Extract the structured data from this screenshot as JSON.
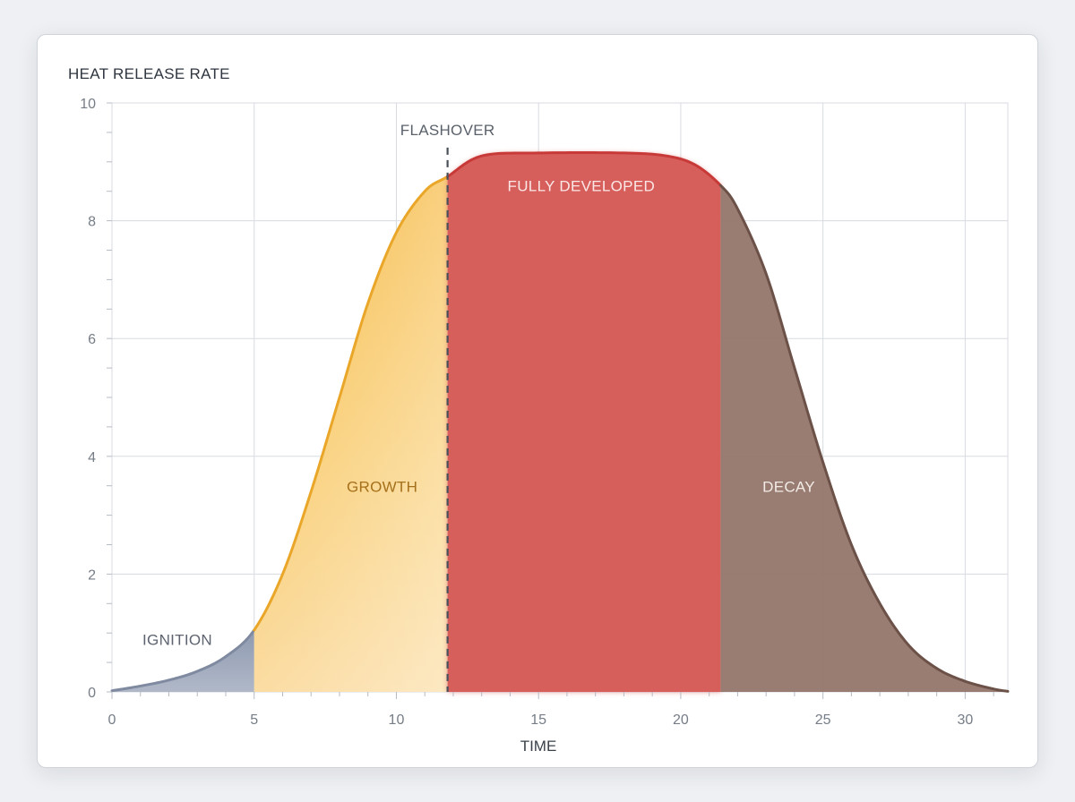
{
  "chart_data": {
    "type": "area",
    "title": "HEAT RELEASE RATE",
    "xlabel": "TIME",
    "ylabel": "",
    "xlim": [
      0,
      31.5
    ],
    "ylim": [
      0,
      10
    ],
    "x_ticks": [
      0,
      5,
      10,
      15,
      20,
      25,
      30
    ],
    "y_ticks": [
      0,
      2,
      4,
      6,
      8,
      10
    ],
    "grid": true,
    "series": [
      {
        "values_x": [
          0,
          1,
          2,
          3,
          4,
          5,
          6,
          7,
          8,
          9,
          10,
          11,
          11.8,
          13,
          15,
          18,
          19.5,
          20.5,
          21.4,
          22,
          23,
          24,
          25,
          26,
          27,
          28,
          29,
          30,
          31,
          31.5
        ],
        "values_y": [
          0.02,
          0.1,
          0.2,
          0.35,
          0.6,
          1.05,
          2.0,
          3.4,
          5.0,
          6.6,
          7.8,
          8.5,
          8.75,
          9.1,
          9.15,
          9.15,
          9.1,
          8.95,
          8.6,
          8.2,
          7.1,
          5.5,
          3.9,
          2.5,
          1.5,
          0.8,
          0.4,
          0.18,
          0.05,
          0.01
        ]
      }
    ],
    "phases": [
      {
        "label": "IGNITION",
        "start": 0,
        "end": 5,
        "color": "#a7b0c2",
        "label_x": 2.3,
        "label_y": 0.8,
        "label_color": "#5d6470"
      },
      {
        "label": "GROWTH",
        "start": 5,
        "end": 11.8,
        "color": "#f8c352",
        "label_x": 9.5,
        "label_y": 3.4,
        "label_color": "#a5701b"
      },
      {
        "label": "FULLY DEVELOPED",
        "start": 11.8,
        "end": 21.4,
        "color": "#d65f5c",
        "label_x": 16.5,
        "label_y": 8.5,
        "label_color": "#fbe8e6"
      },
      {
        "label": "DECAY",
        "start": 21.4,
        "end": 31.5,
        "color": "#93766a",
        "label_x": 23.8,
        "label_y": 3.4,
        "label_color": "#f2ebe6"
      }
    ],
    "annotations": [
      {
        "type": "vline",
        "x": 11.8,
        "label": "FLASHOVER",
        "color": "#4a5059"
      }
    ]
  }
}
